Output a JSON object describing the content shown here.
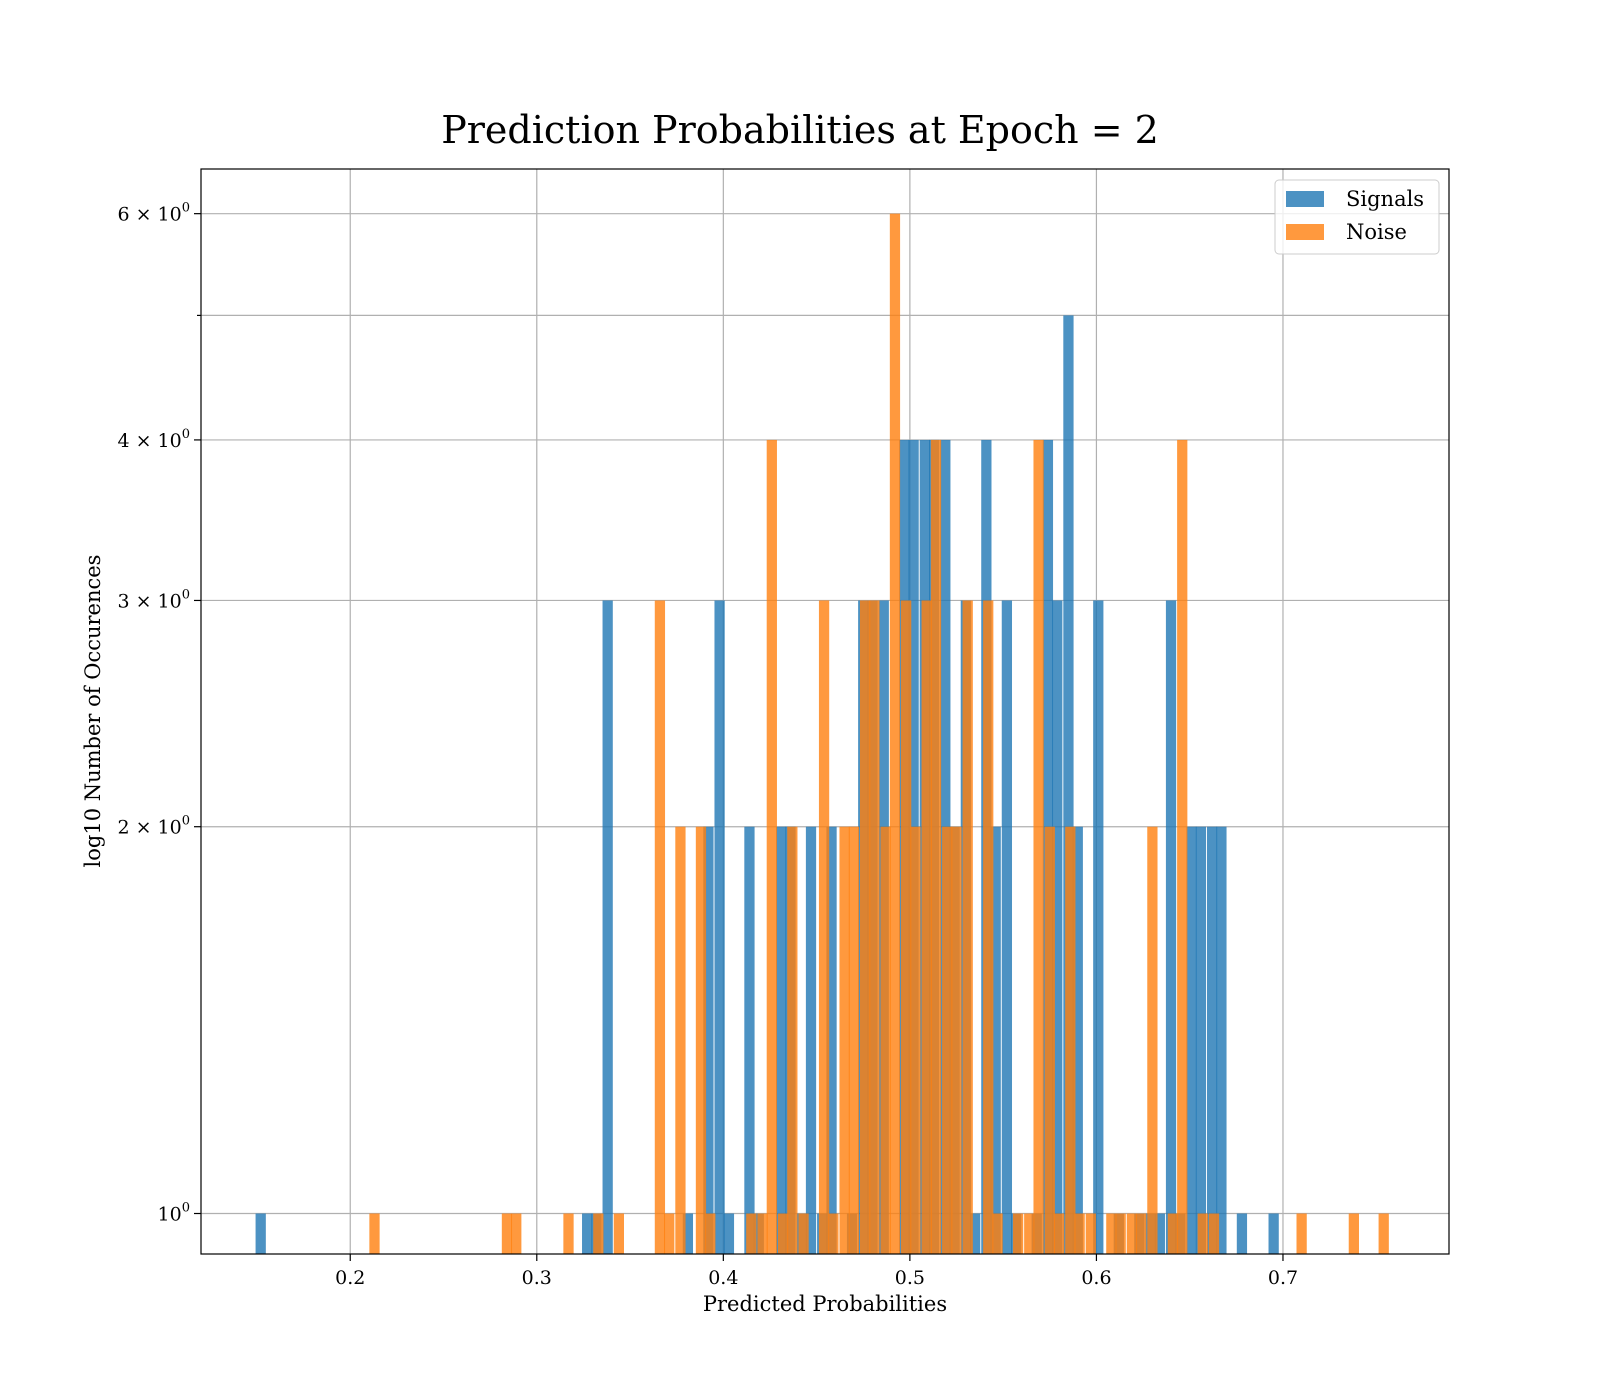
{
  "chart_data": {
    "type": "bar",
    "title": "Prediction Probabilities at Epoch = 2",
    "xlabel": "Predicted Probabilities",
    "ylabel": "log10 Number of Occurences",
    "y_scale": "log",
    "xlim": [
      0.12,
      0.789
    ],
    "ylim": [
      0.93,
      6.5
    ],
    "x_ticks": [
      {
        "value": 0.2,
        "label": "0.2"
      },
      {
        "value": 0.3,
        "label": "0.3"
      },
      {
        "value": 0.4,
        "label": "0.4"
      },
      {
        "value": 0.5,
        "label": "0.5"
      },
      {
        "value": 0.6,
        "label": "0.6"
      },
      {
        "value": 0.7,
        "label": "0.7"
      }
    ],
    "y_ticks": [
      {
        "value": 1,
        "base": "10",
        "exp": "0"
      },
      {
        "value": 2,
        "base": "2 × 10",
        "exp": "0"
      },
      {
        "value": 3,
        "base": "3 × 10",
        "exp": "0"
      },
      {
        "value": 4,
        "base": "4 × 10",
        "exp": "0"
      },
      {
        "value": 6,
        "base": "6 × 10",
        "exp": "0"
      }
    ],
    "y_minor_ticks": [
      5
    ],
    "grid": true,
    "legend_position": "top-right",
    "bin_width": 0.0055,
    "series": [
      {
        "name": "Signals",
        "color": "#1f77b4",
        "x": [
          0.152,
          0.327,
          0.332,
          0.338,
          0.381,
          0.392,
          0.398,
          0.403,
          0.414,
          0.419,
          0.431,
          0.436,
          0.442,
          0.447,
          0.453,
          0.458,
          0.469,
          0.475,
          0.48,
          0.486,
          0.497,
          0.502,
          0.508,
          0.513,
          0.519,
          0.524,
          0.53,
          0.535,
          0.541,
          0.546,
          0.552,
          0.557,
          0.568,
          0.574,
          0.579,
          0.585,
          0.59,
          0.601,
          0.612,
          0.623,
          0.629,
          0.634,
          0.64,
          0.645,
          0.651,
          0.656,
          0.662,
          0.667,
          0.678,
          0.695
        ],
        "values": [
          1,
          1,
          1,
          3,
          1,
          2,
          3,
          1,
          2,
          1,
          2,
          2,
          1,
          2,
          1,
          2,
          1,
          3,
          3,
          3,
          4,
          4,
          4,
          4,
          4,
          2,
          3,
          1,
          4,
          2,
          3,
          1,
          1,
          4,
          3,
          5,
          2,
          3,
          1,
          1,
          1,
          1,
          3,
          1,
          2,
          2,
          2,
          2,
          1,
          1
        ]
      },
      {
        "name": "Noise",
        "color": "#ff7f0e",
        "x": [
          0.213,
          0.284,
          0.289,
          0.317,
          0.333,
          0.344,
          0.366,
          0.371,
          0.377,
          0.388,
          0.393,
          0.415,
          0.421,
          0.426,
          0.432,
          0.437,
          0.443,
          0.454,
          0.459,
          0.465,
          0.47,
          0.476,
          0.481,
          0.487,
          0.492,
          0.498,
          0.503,
          0.509,
          0.514,
          0.52,
          0.525,
          0.531,
          0.542,
          0.547,
          0.558,
          0.564,
          0.569,
          0.575,
          0.58,
          0.586,
          0.591,
          0.597,
          0.608,
          0.613,
          0.619,
          0.624,
          0.63,
          0.641,
          0.646,
          0.657,
          0.663,
          0.71,
          0.738,
          0.754
        ],
        "values": [
          1,
          1,
          1,
          1,
          1,
          1,
          3,
          1,
          2,
          2,
          1,
          1,
          1,
          4,
          1,
          2,
          1,
          3,
          1,
          2,
          2,
          3,
          3,
          2,
          6,
          3,
          2,
          3,
          4,
          2,
          2,
          3,
          3,
          1,
          1,
          1,
          4,
          2,
          1,
          2,
          1,
          1,
          1,
          1,
          1,
          1,
          2,
          1,
          4,
          1,
          1,
          1,
          1,
          1
        ]
      }
    ]
  }
}
